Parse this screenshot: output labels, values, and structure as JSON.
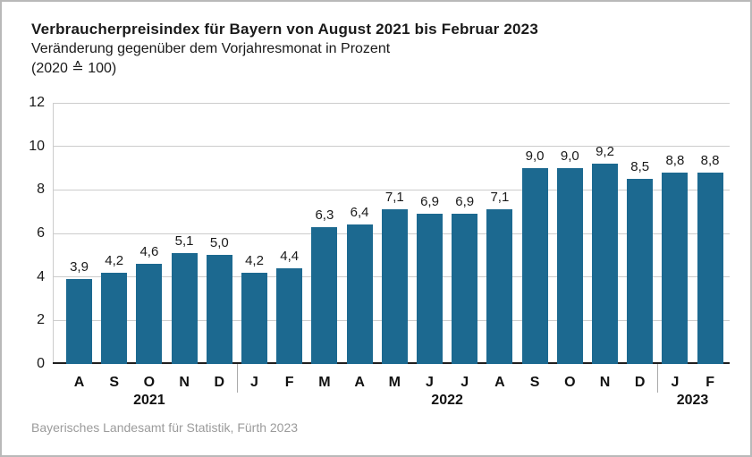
{
  "header": {
    "title": "Verbraucherpreisindex für Bayern von August 2021 bis Februar 2023",
    "subtitle": "Veränderung gegenüber dem Vorjahresmonat in Prozent",
    "note": "(2020 ≙ 100)"
  },
  "source": "Bayerisches Landesamt für Statistik, Fürth 2023",
  "chart_data": {
    "type": "bar",
    "title": "Verbraucherpreisindex für Bayern von August 2021 bis Februar 2023",
    "subtitle": "Veränderung gegenüber dem Vorjahresmonat in Prozent",
    "base_note": "(2020 ≙ 100)",
    "categories": [
      "A",
      "S",
      "O",
      "N",
      "D",
      "J",
      "F",
      "M",
      "A",
      "M",
      "J",
      "J",
      "A",
      "S",
      "O",
      "N",
      "D",
      "J",
      "F"
    ],
    "values": [
      3.9,
      4.2,
      4.6,
      5.1,
      5.0,
      4.2,
      4.4,
      6.3,
      6.4,
      7.1,
      6.9,
      6.9,
      7.1,
      9.0,
      9.0,
      9.2,
      8.5,
      8.8,
      8.8
    ],
    "value_labels": [
      "3,9",
      "4,2",
      "4,6",
      "5,1",
      "5,0",
      "4,2",
      "4,4",
      "6,3",
      "6,4",
      "7,1",
      "6,9",
      "6,9",
      "7,1",
      "9,0",
      "9,0",
      "9,2",
      "8,5",
      "8,8",
      "8,8"
    ],
    "year_groups": [
      {
        "label": "2021",
        "start": 0,
        "end": 4
      },
      {
        "label": "2022",
        "start": 5,
        "end": 16
      },
      {
        "label": "2023",
        "start": 17,
        "end": 18
      }
    ],
    "y_ticks": [
      0,
      2,
      4,
      6,
      8,
      10,
      12
    ],
    "ylim": [
      0,
      12
    ],
    "xlabel": "",
    "ylabel": "",
    "grid": true,
    "legend": false,
    "bar_color": "#1c6990",
    "grid_color": "#cccccc",
    "baseline_color": "#1f1f1f",
    "source": "Bayerisches Landesamt für Statistik, Fürth 2023"
  }
}
